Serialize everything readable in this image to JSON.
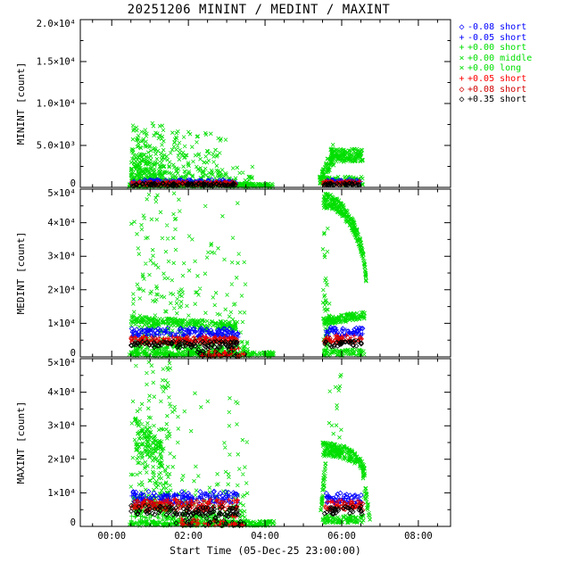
{
  "chart_data": {
    "type": "scatter",
    "title": "20251206 MININT / MEDINT / MAXINT",
    "xlabel": "Start Time (05-Dec-25 23:00:00)",
    "grid": false,
    "legend_position": "top-right",
    "xlim": [
      -0.82,
      8.84
    ],
    "x_minor_step_hours": 0.5,
    "xticks": [
      {
        "v": 0,
        "label": "00:00"
      },
      {
        "v": 2,
        "label": "02:00"
      },
      {
        "v": 4,
        "label": "04:00"
      },
      {
        "v": 6,
        "label": "06:00"
      },
      {
        "v": 8,
        "label": "08:00"
      }
    ],
    "colors": {
      "green": "#00DF00",
      "blue": "#0000FF",
      "red": "#FF0000",
      "red2": "#CF0000",
      "black": "#000000"
    },
    "legend": [
      {
        "symbol": "◇",
        "label": "-0.08 short",
        "color": "#0000FF"
      },
      {
        "symbol": "+",
        "label": "-0.05 short",
        "color": "#0000FF"
      },
      {
        "symbol": "+",
        "label": "+0.00 short",
        "color": "#00DF00"
      },
      {
        "symbol": "×",
        "label": "+0.00 middle",
        "color": "#00DF00"
      },
      {
        "symbol": "×",
        "label": "+0.00 long",
        "color": "#00DF00"
      },
      {
        "symbol": "+",
        "label": "+0.05 short",
        "color": "#FF0000"
      },
      {
        "symbol": "◇",
        "label": "+0.08 short",
        "color": "#CF0000"
      },
      {
        "symbol": "◇",
        "label": "+0.35 short",
        "color": "#000000"
      }
    ],
    "panels": [
      {
        "name": "MININT",
        "ylabel": "MININT [count]",
        "ylim": [
          0,
          20000
        ],
        "yminor": 2500,
        "yticks": [
          {
            "v": 0,
            "label": "0"
          },
          {
            "v": 5000,
            "label": "5.0×10³"
          },
          {
            "v": 10000,
            "label": "1.0×10⁴"
          },
          {
            "v": 15000,
            "label": "1.5×10⁴"
          },
          {
            "v": 20000,
            "label": "2.0×10⁴"
          }
        ],
        "clusters": [
          {
            "m": "x",
            "c": "green",
            "n": 260,
            "t": [
              0.5,
              1.4
            ],
            "v": [
              700,
              7800
            ],
            "mode": "logu"
          },
          {
            "m": "x",
            "c": "green",
            "n": 180,
            "t": [
              1.4,
              3.0
            ],
            "v": [
              500,
              6800
            ],
            "mode": "logu"
          },
          {
            "m": "x",
            "c": "green",
            "n": 35,
            "t": [
              3.0,
              3.7
            ],
            "v": [
              250,
              2500
            ],
            "mode": "logu"
          },
          {
            "m": "x",
            "c": "green",
            "n": 320,
            "t": [
              0.45,
              4.2
            ],
            "v": [
              60,
              450
            ],
            "mode": "band"
          },
          {
            "m": "plus",
            "c": "green",
            "n": 60,
            "t": [
              0.5,
              3.2
            ],
            "v": [
              120,
              450
            ],
            "mode": "band"
          },
          {
            "m": "x",
            "c": "green",
            "n": 70,
            "t": [
              5.42,
              5.8
            ],
            "v": [
              900,
              4000
            ],
            "mode": "ramp",
            "j": 0.35
          },
          {
            "m": "x",
            "c": "green",
            "n": 150,
            "t": [
              5.7,
              6.55
            ],
            "v": [
              3000,
              4600
            ],
            "mode": "band"
          },
          {
            "m": "x",
            "c": "green",
            "n": 110,
            "t": [
              5.42,
              6.55
            ],
            "v": [
              250,
              1300
            ],
            "mode": "band"
          },
          {
            "m": "d",
            "c": "blue",
            "n": 70,
            "t": [
              0.5,
              3.25
            ],
            "v": [
              480,
              900
            ],
            "mode": "band"
          },
          {
            "m": "plus",
            "c": "blue",
            "n": 70,
            "t": [
              0.5,
              3.25
            ],
            "v": [
              430,
              820
            ],
            "mode": "band"
          },
          {
            "m": "plus",
            "c": "red",
            "n": 70,
            "t": [
              0.5,
              3.25
            ],
            "v": [
              330,
              700
            ],
            "mode": "band"
          },
          {
            "m": "d",
            "c": "red2",
            "n": 70,
            "t": [
              0.5,
              3.25
            ],
            "v": [
              300,
              640
            ],
            "mode": "band"
          },
          {
            "m": "d",
            "c": "black",
            "n": 90,
            "t": [
              0.5,
              3.25
            ],
            "v": [
              150,
              480
            ],
            "mode": "band"
          },
          {
            "m": "d",
            "c": "blue",
            "n": 28,
            "t": [
              5.5,
              6.5
            ],
            "v": [
              550,
              950
            ],
            "mode": "band"
          },
          {
            "m": "plus",
            "c": "blue",
            "n": 28,
            "t": [
              5.5,
              6.5
            ],
            "v": [
              500,
              880
            ],
            "mode": "band"
          },
          {
            "m": "plus",
            "c": "red",
            "n": 28,
            "t": [
              5.5,
              6.5
            ],
            "v": [
              400,
              750
            ],
            "mode": "band"
          },
          {
            "m": "d",
            "c": "red2",
            "n": 28,
            "t": [
              5.5,
              6.5
            ],
            "v": [
              360,
              700
            ],
            "mode": "band"
          },
          {
            "m": "d",
            "c": "black",
            "n": 30,
            "t": [
              5.5,
              6.5
            ],
            "v": [
              200,
              520
            ],
            "mode": "band"
          }
        ]
      },
      {
        "name": "MEDINT",
        "ylabel": "MEDINT [count]",
        "ylim": [
          0,
          50000
        ],
        "yminor": 5000,
        "yticks": [
          {
            "v": 0,
            "label": "0"
          },
          {
            "v": 10000,
            "label": "1×10⁴"
          },
          {
            "v": 20000,
            "label": "2×10⁴"
          },
          {
            "v": 30000,
            "label": "3×10⁴"
          },
          {
            "v": 40000,
            "label": "4×10⁴"
          },
          {
            "v": 50000,
            "label": "5×10⁴"
          }
        ],
        "clusters": [
          {
            "m": "x",
            "c": "green",
            "n": 200,
            "t": [
              0.5,
              1.9
            ],
            "v": [
              2500,
              49000
            ],
            "mode": "logu"
          },
          {
            "m": "x",
            "c": "green",
            "n": 130,
            "t": [
              1.9,
              3.55
            ],
            "v": [
              1200,
              46000
            ],
            "mode": "logu"
          },
          {
            "m": "x",
            "c": "green",
            "n": 220,
            "t": [
              0.5,
              3.3
            ],
            "v": [
              10800,
              9200
            ],
            "mode": "ramp",
            "j": 0.13
          },
          {
            "m": "x",
            "c": "green",
            "n": 260,
            "t": [
              0.45,
              4.25
            ],
            "v": [
              150,
              1600
            ],
            "mode": "band"
          },
          {
            "m": "plus",
            "c": "green",
            "n": 60,
            "t": [
              0.5,
              3.2
            ],
            "v": [
              1200,
              3000
            ],
            "mode": "band"
          },
          {
            "m": "x",
            "c": "green",
            "n": 50,
            "t": [
              5.5,
              5.68
            ],
            "v": [
              2500,
              44000
            ],
            "mode": "logu"
          },
          {
            "m": "x",
            "c": "green",
            "n": 240,
            "t": [
              5.52,
              6.65
            ],
            "v": [
              46500,
              19000
            ],
            "mode": "arc",
            "j": 0.05
          },
          {
            "m": "x",
            "c": "green",
            "n": 130,
            "t": [
              5.52,
              6.6
            ],
            "v": [
              10500,
              12500
            ],
            "mode": "ramp",
            "j": 0.1
          },
          {
            "m": "x",
            "c": "green",
            "n": 80,
            "t": [
              5.52,
              6.6
            ],
            "v": [
              300,
              2200
            ],
            "mode": "band"
          },
          {
            "m": "d",
            "c": "blue",
            "n": 80,
            "t": [
              0.5,
              3.3
            ],
            "v": [
              6300,
              8600
            ],
            "mode": "band"
          },
          {
            "m": "plus",
            "c": "blue",
            "n": 80,
            "t": [
              0.5,
              3.3
            ],
            "v": [
              5800,
              8000
            ],
            "mode": "band"
          },
          {
            "m": "plus",
            "c": "red",
            "n": 80,
            "t": [
              0.5,
              3.3
            ],
            "v": [
              4300,
              6200
            ],
            "mode": "band"
          },
          {
            "m": "d",
            "c": "red2",
            "n": 80,
            "t": [
              0.5,
              3.3
            ],
            "v": [
              3900,
              5600
            ],
            "mode": "band"
          },
          {
            "m": "d",
            "c": "black",
            "n": 90,
            "t": [
              0.5,
              3.3
            ],
            "v": [
              2800,
              4600
            ],
            "mode": "band"
          },
          {
            "m": "d",
            "c": "black",
            "n": 40,
            "t": [
              2.2,
              3.5
            ],
            "v": [
              200,
              3000
            ],
            "mode": "logu"
          },
          {
            "m": "plus",
            "c": "red",
            "n": 30,
            "t": [
              2.3,
              3.5
            ],
            "v": [
              200,
              2500
            ],
            "mode": "logu"
          },
          {
            "m": "d",
            "c": "blue",
            "n": 32,
            "t": [
              5.55,
              6.55
            ],
            "v": [
              6500,
              8800
            ],
            "mode": "band"
          },
          {
            "m": "plus",
            "c": "blue",
            "n": 32,
            "t": [
              5.55,
              6.55
            ],
            "v": [
              6000,
              8200
            ],
            "mode": "band"
          },
          {
            "m": "plus",
            "c": "red",
            "n": 32,
            "t": [
              5.55,
              6.55
            ],
            "v": [
              4500,
              6500
            ],
            "mode": "band"
          },
          {
            "m": "d",
            "c": "red2",
            "n": 32,
            "t": [
              5.55,
              6.55
            ],
            "v": [
              4000,
              5800
            ],
            "mode": "band"
          },
          {
            "m": "d",
            "c": "black",
            "n": 32,
            "t": [
              5.55,
              6.55
            ],
            "v": [
              3000,
              4800
            ],
            "mode": "band"
          }
        ]
      },
      {
        "name": "MAXINT",
        "ylabel": "MAXINT [count]",
        "ylim": [
          0,
          50000
        ],
        "yminor": 5000,
        "yticks": [
          {
            "v": 0,
            "label": "0"
          },
          {
            "v": 10000,
            "label": "1×10⁴"
          },
          {
            "v": 20000,
            "label": "2×10⁴"
          },
          {
            "v": 30000,
            "label": "3×10⁴"
          },
          {
            "v": 40000,
            "label": "4×10⁴"
          },
          {
            "v": 50000,
            "label": "5×10⁴"
          }
        ],
        "clusters": [
          {
            "m": "x",
            "c": "green",
            "n": 230,
            "t": [
              0.5,
              1.55
            ],
            "v": [
              3500,
              49500
            ],
            "mode": "logu"
          },
          {
            "m": "x",
            "c": "green",
            "n": 150,
            "t": [
              1.55,
              3.55
            ],
            "v": [
              1200,
              40000
            ],
            "mode": "logu"
          },
          {
            "m": "x",
            "c": "green",
            "n": 110,
            "t": [
              0.6,
              1.35
            ],
            "v": [
              28000,
              21000
            ],
            "mode": "ramp",
            "j": 0.18
          },
          {
            "m": "x",
            "c": "green",
            "n": 280,
            "t": [
              0.45,
              4.25
            ],
            "v": [
              150,
              1600
            ],
            "mode": "band"
          },
          {
            "m": "plus",
            "c": "green",
            "n": 60,
            "t": [
              0.5,
              3.2
            ],
            "v": [
              1500,
              3500
            ],
            "mode": "band"
          },
          {
            "m": "x",
            "c": "green",
            "n": 45,
            "t": [
              5.45,
              5.6
            ],
            "v": [
              4000,
              21000
            ],
            "mode": "ramp",
            "j": 0.25
          },
          {
            "m": "x",
            "c": "green",
            "n": 210,
            "t": [
              5.5,
              6.6
            ],
            "v": [
              23000,
              15500
            ],
            "mode": "arc",
            "j": 0.09
          },
          {
            "m": "x",
            "c": "green",
            "n": 15,
            "t": [
              5.5,
              6.0
            ],
            "v": [
              25000,
              46000
            ],
            "mode": "logu"
          },
          {
            "m": "x",
            "c": "green",
            "n": 90,
            "t": [
              5.5,
              6.6
            ],
            "v": [
              1000,
              3200
            ],
            "mode": "band"
          },
          {
            "m": "x",
            "c": "green",
            "n": 35,
            "t": [
              6.55,
              6.75
            ],
            "v": [
              15000,
              1500
            ],
            "mode": "ramp",
            "j": 0.3
          },
          {
            "m": "d",
            "c": "blue",
            "n": 85,
            "t": [
              0.5,
              3.3
            ],
            "v": [
              7200,
              10500
            ],
            "mode": "band"
          },
          {
            "m": "plus",
            "c": "blue",
            "n": 85,
            "t": [
              0.5,
              3.3
            ],
            "v": [
              6600,
              9600
            ],
            "mode": "band"
          },
          {
            "m": "plus",
            "c": "red",
            "n": 85,
            "t": [
              0.5,
              3.3
            ],
            "v": [
              5000,
              8200
            ],
            "mode": "band"
          },
          {
            "m": "d",
            "c": "red2",
            "n": 85,
            "t": [
              0.5,
              3.3
            ],
            "v": [
              4600,
              7600
            ],
            "mode": "band"
          },
          {
            "m": "d",
            "c": "black",
            "n": 95,
            "t": [
              0.5,
              3.3
            ],
            "v": [
              3400,
              6200
            ],
            "mode": "band"
          },
          {
            "m": "d",
            "c": "black",
            "n": 45,
            "t": [
              1.6,
              3.5
            ],
            "v": [
              200,
              3500
            ],
            "mode": "logu"
          },
          {
            "m": "plus",
            "c": "red",
            "n": 35,
            "t": [
              1.8,
              3.5
            ],
            "v": [
              200,
              3000
            ],
            "mode": "logu"
          },
          {
            "m": "d",
            "c": "blue",
            "n": 32,
            "t": [
              5.55,
              6.55
            ],
            "v": [
              7000,
              10000
            ],
            "mode": "band"
          },
          {
            "m": "plus",
            "c": "blue",
            "n": 32,
            "t": [
              5.55,
              6.55
            ],
            "v": [
              6500,
              9200
            ],
            "mode": "band"
          },
          {
            "m": "plus",
            "c": "red",
            "n": 32,
            "t": [
              5.55,
              6.55
            ],
            "v": [
              5200,
              7800
            ],
            "mode": "band"
          },
          {
            "m": "d",
            "c": "red2",
            "n": 32,
            "t": [
              5.55,
              6.55
            ],
            "v": [
              4800,
              7200
            ],
            "mode": "band"
          },
          {
            "m": "d",
            "c": "black",
            "n": 32,
            "t": [
              5.55,
              6.55
            ],
            "v": [
              3600,
              6000
            ],
            "mode": "band"
          }
        ]
      }
    ]
  }
}
